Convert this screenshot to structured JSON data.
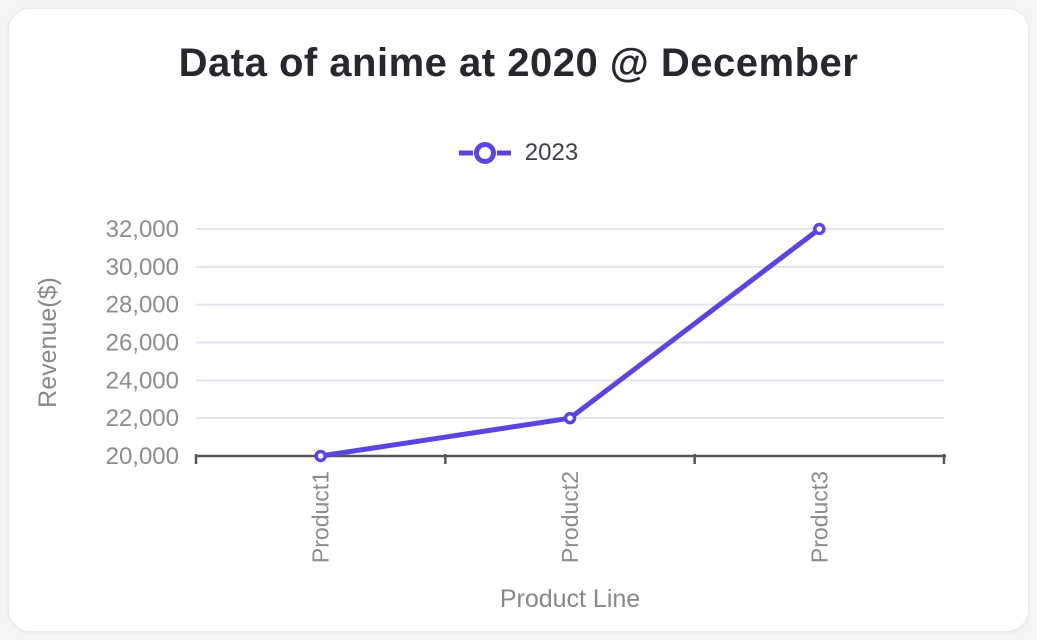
{
  "page": {
    "background_color": "#f3f5f7",
    "card_color": "#ffffff"
  },
  "header": {
    "title": "Data of anime at 2020 @ December"
  },
  "legend": {
    "items": [
      {
        "label": "2023",
        "color": "#5a45e0",
        "marker": "open-circle-line"
      }
    ]
  },
  "chart_data": {
    "type": "line",
    "title": "Data of anime at 2020 @ December",
    "categories": [
      "Product1",
      "Product2",
      "Product3"
    ],
    "series": [
      {
        "name": "2023",
        "values": [
          20000,
          22000,
          32000
        ],
        "color": "#5a45e0",
        "marker": "open-circle"
      }
    ],
    "xlabel": "Product Line",
    "ylabel": "Revenue($)",
    "ylim": [
      20000,
      32000
    ],
    "yticks": [
      {
        "value": 20000,
        "label": "20,000"
      },
      {
        "value": 22000,
        "label": "22,000"
      },
      {
        "value": 24000,
        "label": "24,000"
      },
      {
        "value": 26000,
        "label": "26,000"
      },
      {
        "value": 28000,
        "label": "28,000"
      },
      {
        "value": 30000,
        "label": "30,000"
      },
      {
        "value": 32000,
        "label": "32,000"
      }
    ],
    "grid": true,
    "legend_position": "top-center",
    "x_labels_rotated": true,
    "colors": {
      "grid_line": "#e3e4ef",
      "axis_line": "#55565c",
      "tick_text": "#8c8c91",
      "axis_title_text": "#87878c",
      "title_text": "#27272e",
      "legend_text": "#3f3f46"
    }
  }
}
